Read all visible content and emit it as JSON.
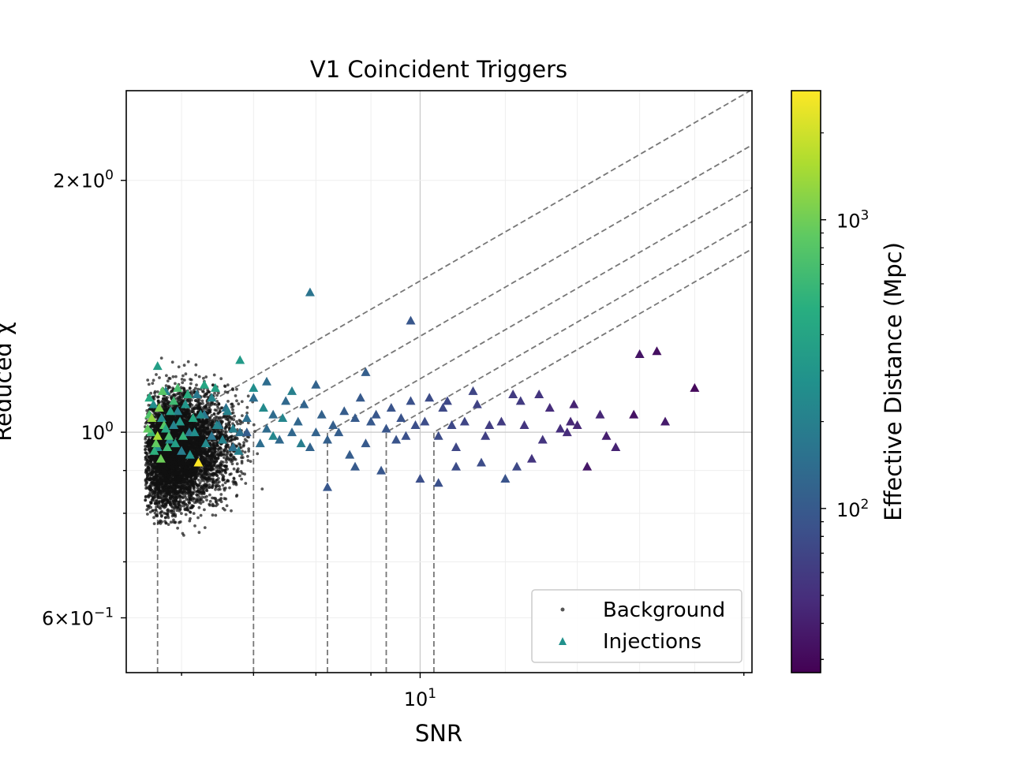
{
  "chart_data": {
    "type": "scatter",
    "title": "V1 Coincident Triggers",
    "xlabel": "SNR",
    "ylabel": "Reduced χ",
    "xscale": "log",
    "yscale": "log",
    "xlim": [
      5.33,
      20.35
    ],
    "ylim": [
      0.516,
      2.56
    ],
    "grid": true,
    "legend_position": "lower-right",
    "x_tick_labels": [
      {
        "value": 10,
        "base": "10",
        "exp": "1"
      }
    ],
    "y_tick_labels": [
      {
        "value": 0.6,
        "mant": "6",
        "exp": "−1"
      },
      {
        "value": 1.0,
        "mant": "",
        "base": "10",
        "exp": "0"
      },
      {
        "value": 2.0,
        "mant": "2",
        "exp": "0"
      }
    ],
    "colorbar": {
      "label": "Effective Distance (Mpc)",
      "scale": "log",
      "range": [
        27,
        2800
      ],
      "cmap": "viridis",
      "tick_labels": [
        {
          "value": 100,
          "base": "10",
          "exp": "2"
        },
        {
          "value": 1000,
          "base": "10",
          "exp": "3"
        }
      ]
    },
    "series": [
      {
        "name": "Background",
        "marker": "dot",
        "color": "#333333",
        "n_points": 6000
      },
      {
        "name": "Injections",
        "marker": "triangle",
        "color": "#21918c"
      }
    ],
    "contours_snr_cutoff": [
      5.7,
      7.0,
      8.2,
      9.3,
      10.3
    ],
    "injections": [
      [
        16.0,
        1.24,
        35
      ],
      [
        16.6,
        1.25,
        33
      ],
      [
        18.0,
        1.13,
        30
      ],
      [
        14.3,
        0.91,
        36
      ],
      [
        15.8,
        1.05,
        34
      ],
      [
        16.9,
        1.03,
        38
      ],
      [
        15.2,
        0.96,
        42
      ],
      [
        14.7,
        1.05,
        45
      ],
      [
        13.9,
        1.08,
        42
      ],
      [
        14.0,
        1.02,
        45
      ],
      [
        13.8,
        1.03,
        45
      ],
      [
        13.2,
        1.07,
        48
      ],
      [
        13.5,
        1.01,
        50
      ],
      [
        12.9,
        1.11,
        55
      ],
      [
        12.7,
        0.93,
        55
      ],
      [
        12.5,
        1.02,
        55
      ],
      [
        12.4,
        1.09,
        60
      ],
      [
        12.2,
        1.11,
        60
      ],
      [
        11.9,
        1.03,
        60
      ],
      [
        11.6,
        1.02,
        62
      ],
      [
        11.5,
        0.99,
        65
      ],
      [
        11.3,
        1.08,
        68
      ],
      [
        11.2,
        1.12,
        70
      ],
      [
        11.0,
        1.03,
        70
      ],
      [
        10.8,
        0.96,
        72
      ],
      [
        10.7,
        1.02,
        74
      ],
      [
        10.6,
        1.09,
        74
      ],
      [
        10.5,
        1.07,
        75
      ],
      [
        10.4,
        0.99,
        78
      ],
      [
        10.2,
        1.1,
        78
      ],
      [
        10.1,
        1.03,
        80
      ],
      [
        10.0,
        0.88,
        82
      ],
      [
        9.9,
        1.02,
        82
      ],
      [
        9.8,
        1.09,
        85
      ],
      [
        9.7,
        0.99,
        85
      ],
      [
        9.6,
        1.04,
        88
      ],
      [
        9.5,
        0.98,
        90
      ],
      [
        9.4,
        1.07,
        90
      ],
      [
        9.3,
        1.01,
        92
      ],
      [
        9.2,
        0.9,
        95
      ],
      [
        9.1,
        1.05,
        95
      ],
      [
        9.0,
        1.03,
        98
      ],
      [
        8.9,
        0.97,
        100
      ],
      [
        8.8,
        1.1,
        100
      ],
      [
        8.7,
        1.04,
        102
      ],
      [
        8.6,
        0.94,
        105
      ],
      [
        8.5,
        1.06,
        105
      ],
      [
        8.4,
        1.0,
        108
      ],
      [
        8.3,
        1.02,
        110
      ],
      [
        8.2,
        0.98,
        112
      ],
      [
        8.1,
        1.05,
        115
      ],
      [
        8.0,
        1.0,
        118
      ],
      [
        8.0,
        1.14,
        118
      ],
      [
        7.9,
        0.96,
        120
      ],
      [
        7.8,
        1.08,
        120
      ],
      [
        7.7,
        1.03,
        125
      ],
      [
        7.6,
        1.0,
        125
      ],
      [
        7.5,
        1.09,
        130
      ],
      [
        7.4,
        0.98,
        130
      ],
      [
        7.3,
        1.05,
        135
      ],
      [
        7.2,
        1.01,
        135
      ],
      [
        7.1,
        0.97,
        140
      ],
      [
        7.0,
        1.1,
        140
      ],
      [
        6.9,
        1.04,
        145
      ],
      [
        6.8,
        1.0,
        150
      ],
      [
        6.7,
        0.96,
        150
      ],
      [
        6.6,
        1.07,
        155
      ],
      [
        6.5,
        1.02,
        160
      ],
      [
        6.4,
        0.99,
        165
      ],
      [
        6.3,
        1.05,
        170
      ],
      [
        6.2,
        1.11,
        175
      ],
      [
        6.1,
        1.0,
        180
      ],
      [
        6.0,
        0.95,
        190
      ],
      [
        5.95,
        1.06,
        200
      ],
      [
        5.9,
        1.02,
        210
      ],
      [
        5.85,
        0.98,
        220
      ],
      [
        5.8,
        1.12,
        230
      ],
      [
        5.75,
        1.04,
        240
      ],
      [
        5.7,
        0.96,
        250
      ],
      [
        5.65,
        1.08,
        260
      ],
      [
        9.8,
        1.36,
        95
      ],
      [
        8.9,
        1.18,
        110
      ],
      [
        7.9,
        1.47,
        160
      ],
      [
        7.2,
        1.15,
        140
      ],
      [
        6.9,
        1.0,
        105
      ],
      [
        10.8,
        0.91,
        80
      ],
      [
        11.4,
        0.92,
        80
      ],
      [
        12.0,
        0.88,
        90
      ],
      [
        12.3,
        0.91,
        75
      ],
      [
        10.4,
        0.87,
        85
      ],
      [
        8.2,
        0.86,
        95
      ],
      [
        8.7,
        0.91,
        100
      ],
      [
        13.0,
        0.98,
        55
      ],
      [
        14.9,
        0.99,
        40
      ],
      [
        13.7,
        1.0,
        48
      ],
      [
        5.6,
        1.05,
        750
      ],
      [
        5.62,
        1.0,
        600
      ],
      [
        5.68,
        0.97,
        900
      ],
      [
        5.72,
        1.07,
        1100
      ],
      [
        5.78,
        1.02,
        820
      ],
      [
        5.84,
        0.99,
        700
      ],
      [
        5.9,
        1.09,
        640
      ],
      [
        5.6,
        1.1,
        450
      ],
      [
        5.66,
        0.95,
        520
      ],
      [
        5.74,
        0.93,
        980
      ],
      [
        5.8,
        1.01,
        420
      ],
      [
        5.86,
        1.06,
        380
      ],
      [
        5.92,
        0.97,
        360
      ],
      [
        5.98,
        1.03,
        320
      ],
      [
        6.05,
        1.08,
        300
      ],
      [
        6.11,
        0.94,
        280
      ],
      [
        6.17,
        1.0,
        260
      ],
      [
        6.25,
        1.05,
        250
      ],
      [
        6.32,
        0.97,
        240
      ],
      [
        6.4,
        1.1,
        230
      ],
      [
        6.47,
        1.02,
        220
      ],
      [
        6.55,
        0.98,
        215
      ],
      [
        6.62,
        1.06,
        210
      ],
      [
        6.7,
        1.01,
        205
      ],
      [
        6.78,
        0.95,
        200
      ],
      [
        5.63,
        1.04,
        1300
      ],
      [
        5.7,
        0.99,
        1500
      ],
      [
        5.76,
        1.12,
        820
      ],
      [
        5.82,
        0.96,
        640
      ],
      [
        5.58,
        1.01,
        900
      ],
      [
        6.22,
        0.92,
        2800
      ],
      [
        5.95,
        1.13,
        700
      ],
      [
        6.02,
        0.99,
        560
      ],
      [
        6.08,
        1.11,
        480
      ],
      [
        6.15,
        1.04,
        430
      ],
      [
        6.3,
        1.14,
        420
      ],
      [
        6.45,
        1.13,
        380
      ],
      [
        5.7,
        1.2,
        360
      ],
      [
        6.8,
        1.22,
        330
      ],
      [
        7.0,
        1.13,
        260
      ],
      [
        7.15,
        1.07,
        240
      ],
      [
        7.3,
        0.99,
        230
      ],
      [
        7.45,
        1.04,
        220
      ],
      [
        7.6,
        1.12,
        200
      ],
      [
        7.75,
        0.97,
        190
      ]
    ]
  }
}
